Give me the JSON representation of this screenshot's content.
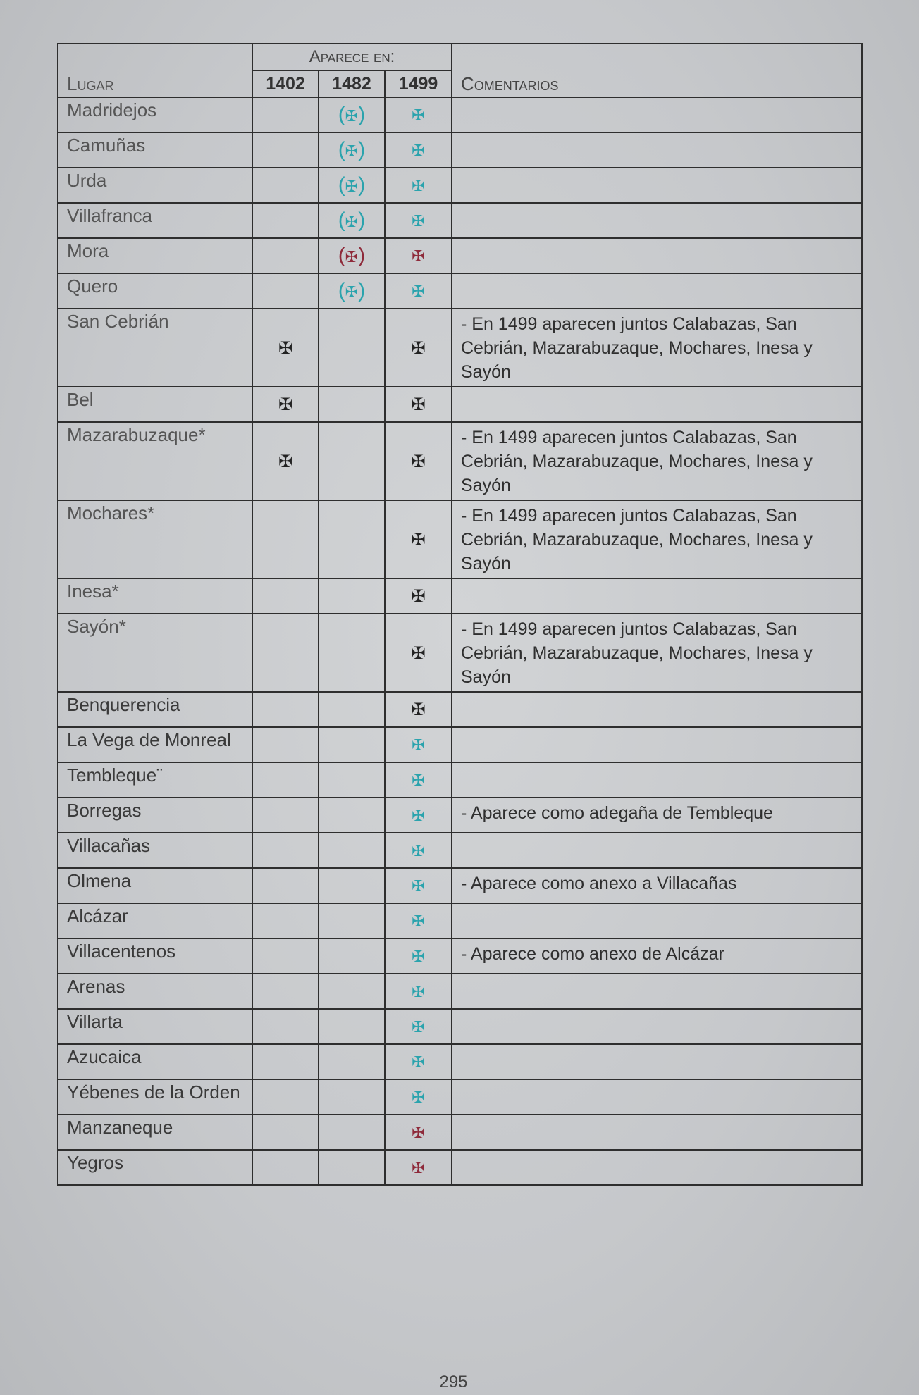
{
  "header": {
    "lugar": "Lugar",
    "aparece_en": "Aparece en:",
    "years": [
      "1402",
      "1482",
      "1499"
    ],
    "comentarios": "Comentarios"
  },
  "cross_glyph": "✠",
  "colors": {
    "black": "#222222",
    "teal": "#2aa3ad",
    "red": "#8e2a3a"
  },
  "rows": [
    {
      "lugar": "Madridejos",
      "marks": [
        "",
        "teal-paren",
        "teal"
      ],
      "comment": ""
    },
    {
      "lugar": "Camuñas",
      "marks": [
        "",
        "teal-paren",
        "teal"
      ],
      "comment": ""
    },
    {
      "lugar": "Urda",
      "marks": [
        "",
        "teal-paren",
        "teal"
      ],
      "comment": ""
    },
    {
      "lugar": "Villafranca",
      "marks": [
        "",
        "teal-paren",
        "teal"
      ],
      "comment": ""
    },
    {
      "lugar": "Mora",
      "marks": [
        "",
        "red-paren",
        "red"
      ],
      "comment": ""
    },
    {
      "lugar": "Quero",
      "marks": [
        "",
        "teal-paren",
        "teal"
      ],
      "comment": ""
    },
    {
      "lugar": "San Cebrián",
      "marks": [
        "black",
        "",
        "black"
      ],
      "comment": "- En 1499 aparecen juntos Calabazas, San Cebrián, Mazarabuzaque, Mochares, Inesa y Sayón"
    },
    {
      "lugar": "Bel",
      "marks": [
        "black",
        "",
        "black"
      ],
      "comment": ""
    },
    {
      "lugar": "Mazarabuzaque*",
      "marks": [
        "black",
        "",
        "black"
      ],
      "comment": "- En 1499 aparecen juntos Calabazas, San Cebrián, Mazarabuzaque, Mochares, Inesa y Sayón"
    },
    {
      "lugar": "Mochares*",
      "marks": [
        "",
        "",
        "black"
      ],
      "comment": "- En 1499 aparecen juntos Calabazas, San Cebrián, Mazarabuzaque, Mochares, Inesa y Sayón"
    },
    {
      "lugar": "Inesa*",
      "marks": [
        "",
        "",
        "black"
      ],
      "comment": ""
    },
    {
      "lugar": "Sayón*",
      "marks": [
        "",
        "",
        "black"
      ],
      "comment": "- En 1499 aparecen juntos Calabazas, San Cebrián, Mazarabuzaque, Mochares, Inesa y Sayón"
    },
    {
      "lugar": "Benquerencia",
      "marks": [
        "",
        "",
        "black"
      ],
      "comment": ""
    },
    {
      "lugar": "La Vega de Monreal",
      "marks": [
        "",
        "",
        "teal"
      ],
      "comment": ""
    },
    {
      "lugar": "Tembleque¨",
      "marks": [
        "",
        "",
        "teal"
      ],
      "comment": ""
    },
    {
      "lugar": "Borregas",
      "marks": [
        "",
        "",
        "teal"
      ],
      "comment": "- Aparece como adegaña de Tembleque"
    },
    {
      "lugar": "Villacañas",
      "marks": [
        "",
        "",
        "teal"
      ],
      "comment": ""
    },
    {
      "lugar": "Olmena",
      "marks": [
        "",
        "",
        "teal"
      ],
      "comment": "- Aparece como anexo a Villacañas"
    },
    {
      "lugar": "Alcázar",
      "marks": [
        "",
        "",
        "teal"
      ],
      "comment": ""
    },
    {
      "lugar": "Villacentenos",
      "marks": [
        "",
        "",
        "teal"
      ],
      "comment": "- Aparece como anexo de Alcázar"
    },
    {
      "lugar": "Arenas",
      "marks": [
        "",
        "",
        "teal"
      ],
      "comment": ""
    },
    {
      "lugar": "Villarta",
      "marks": [
        "",
        "",
        "teal"
      ],
      "comment": ""
    },
    {
      "lugar": "Azucaica",
      "marks": [
        "",
        "",
        "teal"
      ],
      "comment": ""
    },
    {
      "lugar": "Yébenes de la Orden",
      "marks": [
        "",
        "",
        "teal"
      ],
      "comment": ""
    },
    {
      "lugar": "Manzaneque",
      "marks": [
        "",
        "",
        "red"
      ],
      "comment": ""
    },
    {
      "lugar": "Yegros",
      "marks": [
        "",
        "",
        "red"
      ],
      "comment": ""
    }
  ],
  "page_number": "295"
}
